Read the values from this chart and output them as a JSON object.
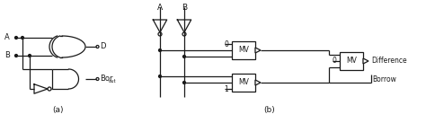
{
  "line_color": "#1a1a1a",
  "label_a_left": "A",
  "label_b_left": "B",
  "label_d": "D",
  "label_bor": "Bor",
  "label_out": "out",
  "label_a_right": "A",
  "label_b_right": "B",
  "label_mv1": "MV",
  "label_mv2": "MV",
  "label_mv3": "MV",
  "label_0_top": "0",
  "label_1_bottom": "1",
  "label_0_right": "0",
  "label_diff": "Difference",
  "label_borrow": "Borrow",
  "caption_a": "(a)",
  "caption_b": "(b)"
}
